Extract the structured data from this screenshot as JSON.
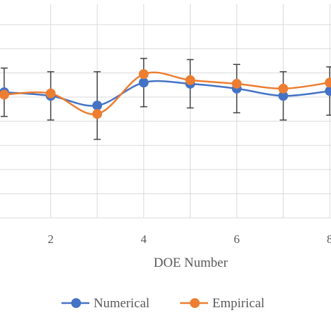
{
  "chart_data": {
    "type": "line",
    "title": "",
    "xlabel": "DOE Number",
    "ylabel": "",
    "x_tick_labels": [
      "2",
      "4",
      "6",
      "8"
    ],
    "xlim": [
      0,
      8
    ],
    "ylim": [
      0,
      8
    ],
    "grid": true,
    "legend_position": "bottom",
    "x": [
      1,
      2,
      3,
      4,
      5,
      6,
      7,
      8
    ],
    "series": [
      {
        "name": "Numerical",
        "color": "#4472c4",
        "values": [
          5.2,
          5.05,
          4.65,
          5.6,
          5.55,
          5.35,
          5.05,
          5.25
        ],
        "error_bars": [
          1.0,
          1.0,
          1.4,
          1.0,
          1.0,
          1.0,
          1.0,
          1.0
        ]
      },
      {
        "name": "Empirical",
        "color": "#ed7d31",
        "values": [
          5.1,
          5.15,
          4.3,
          5.95,
          5.7,
          5.55,
          5.35,
          5.6
        ]
      }
    ]
  }
}
